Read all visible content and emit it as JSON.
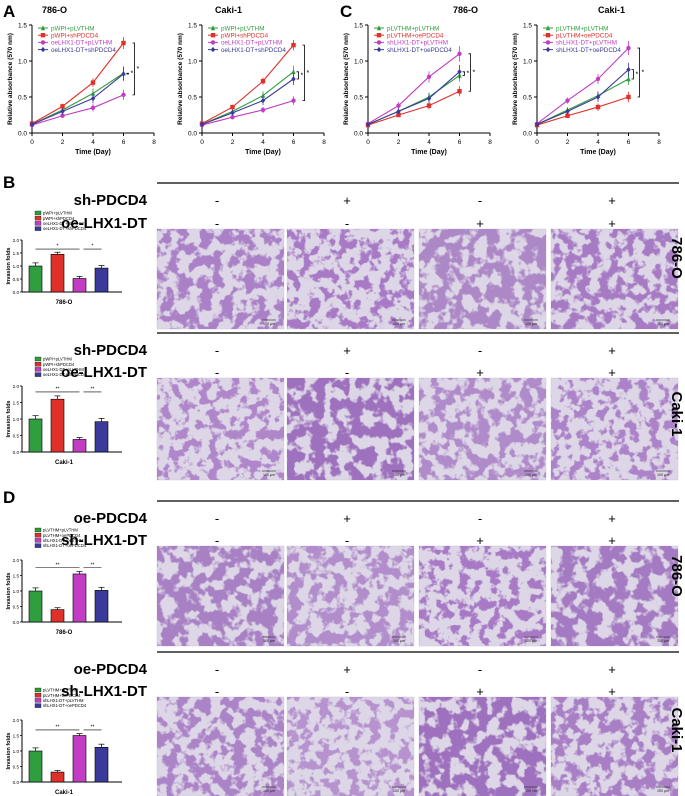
{
  "panels": {
    "A": "A",
    "B": "B",
    "C": "C",
    "D": "D"
  },
  "line_common": {
    "ylabel": "Relative absorbance (570 nm)",
    "xlabel": "Time (Day)",
    "xticks": [
      "0",
      "2",
      "4",
      "6",
      "8"
    ],
    "yticks": [
      "0.0",
      "0.5",
      "1.0",
      "1.5"
    ]
  },
  "bar_common": {
    "ylabel": "Invasion folds",
    "yticks": [
      "0.0",
      "0.5",
      "1.0",
      "1.5",
      "2.0"
    ]
  },
  "line_charts": {
    "a1": {
      "title": "786-O",
      "legend": [
        "pWPI+pLVTHM",
        "pWPI+shPDCD4",
        "oeLHX1-DT+pLVTHM",
        "oeLHX1-DT+shPDCD4"
      ]
    },
    "a2": {
      "title": "Caki-1",
      "legend": [
        "pWPI+pLVTHM",
        "pWPI+shPDCD4",
        "oeLHX1-DT+pLVTHM",
        "oeLHX1-DT+shPDCD4"
      ]
    },
    "c1": {
      "title": "786-O",
      "legend": [
        "pLVTHM+pLVTHM",
        "pLVTHM+oePDCD4",
        "shLHX1-DT+pLVTHM",
        "shLHX1-DT+oePDCD4"
      ]
    },
    "c2": {
      "title": "Caki-1",
      "legend": [
        "pLVTHM+pLVTHM",
        "pLVTHM+oePDCD4",
        "shLHX1-DT+pLVTHM",
        "shLHX1-DT+oePDCD4"
      ]
    }
  },
  "bar_charts": {
    "b1": {
      "label": "786-O",
      "legend": [
        "pWPI+pLVTHM",
        "pWPI+shPDCD4",
        "oeLHX1-DT+pLVTHM",
        "oeLHX1-DT+shPDCD4"
      ],
      "sig": [
        "*",
        "*"
      ]
    },
    "b2": {
      "label": "Caki-1",
      "legend": [
        "pWPI+pLVTHM",
        "pWPI+shPDCD4",
        "oeLHX1-DT+pLVTHM",
        "oeLHX1-DT+shPDCD4"
      ],
      "sig": [
        "**",
        "**"
      ]
    },
    "d1": {
      "label": "786-O",
      "legend": [
        "pLVTHM+pLVTHM",
        "pLVTHM+oePDCD4",
        "shLHX1-DT+pLVTHM",
        "shLHX1-DT+oePDCD4"
      ],
      "sig": [
        "**",
        "**"
      ]
    },
    "d2": {
      "label": "Caki-1",
      "legend": [
        "pLVTHM+pLVTHM",
        "pLVTHM+oePDCD4",
        "shLHX1-DT+pLVTHM",
        "shLHX1-DT+oePDCD4"
      ],
      "sig": [
        "**",
        "**"
      ]
    }
  },
  "treatment_tables": {
    "b1": {
      "row1": "sh-PDCD4",
      "row2": "oe-LHX1-DT",
      "r1": [
        "-",
        "+",
        "-",
        "+"
      ],
      "r2": [
        "-",
        "-",
        "+",
        "+"
      ]
    },
    "b2": {
      "row1": "sh-PDCD4",
      "row2": "oe-LHX1-DT",
      "r1": [
        "-",
        "+",
        "-",
        "+"
      ],
      "r2": [
        "-",
        "-",
        "+",
        "+"
      ]
    },
    "d1": {
      "row1": "oe-PDCD4",
      "row2": "sh-LHX1-DT",
      "r1": [
        "-",
        "+",
        "-",
        "+"
      ],
      "r2": [
        "-",
        "-",
        "+",
        "+"
      ]
    },
    "d2": {
      "row1": "oe-PDCD4",
      "row2": "sh-LHX1-DT",
      "r1": [
        "-",
        "+",
        "-",
        "+"
      ],
      "r2": [
        "-",
        "-",
        "+",
        "+"
      ]
    }
  },
  "cell_line_labels": {
    "b1": "786-O",
    "b2": "Caki-1",
    "d1": "786-O",
    "d2": "Caki-1"
  },
  "sig_star": "*",
  "scale_bar_text": "100 μm",
  "colors": {
    "s1": "#2e9e3e",
    "s2": "#e0302a",
    "s3": "#c23cc4",
    "s4": "#3a3a9a",
    "stain_dark": "#5a2a86",
    "stain_bg": "#ddd8e6"
  },
  "chart_data": [
    {
      "type": "line",
      "id": "A-786-O",
      "title": "786-O",
      "xlabel": "Time (Day)",
      "ylabel": "Relative absorbance (570 nm)",
      "xlim": [
        0,
        8
      ],
      "ylim": [
        0,
        1.5
      ],
      "x": [
        0,
        2,
        4,
        6
      ],
      "series": [
        {
          "name": "pWPI+pLVTHM",
          "values": [
            0.12,
            0.32,
            0.55,
            0.83
          ],
          "err": 0.08
        },
        {
          "name": "pWPI+shPDCD4",
          "values": [
            0.13,
            0.37,
            0.7,
            1.25
          ],
          "err": 0.07
        },
        {
          "name": "oeLHX1-DT+pLVTHM",
          "values": [
            0.11,
            0.24,
            0.35,
            0.53
          ],
          "err": 0.06
        },
        {
          "name": "oeLHX1-DT+shPDCD4",
          "values": [
            0.12,
            0.3,
            0.48,
            0.82
          ],
          "err": 0.08
        }
      ]
    },
    {
      "type": "line",
      "id": "A-Caki-1",
      "title": "Caki-1",
      "xlabel": "Time (Day)",
      "ylabel": "Relative absorbance (570 nm)",
      "xlim": [
        0,
        8
      ],
      "ylim": [
        0,
        1.5
      ],
      "x": [
        0,
        2,
        4,
        6
      ],
      "series": [
        {
          "name": "pWPI+pLVTHM",
          "values": [
            0.12,
            0.3,
            0.52,
            0.85
          ],
          "err": 0.07
        },
        {
          "name": "pWPI+shPDCD4",
          "values": [
            0.13,
            0.36,
            0.72,
            1.22
          ],
          "err": 0.06
        },
        {
          "name": "oeLHX1-DT+pLVTHM",
          "values": [
            0.11,
            0.22,
            0.32,
            0.45
          ],
          "err": 0.05
        },
        {
          "name": "oeLHX1-DT+shPDCD4",
          "values": [
            0.12,
            0.28,
            0.45,
            0.75
          ],
          "err": 0.07
        }
      ]
    },
    {
      "type": "line",
      "id": "C-786-O",
      "title": "786-O",
      "xlabel": "Time (Day)",
      "ylabel": "Relative absorbance (570 nm)",
      "xlim": [
        0,
        8
      ],
      "ylim": [
        0,
        1.5
      ],
      "x": [
        0,
        2,
        4,
        6
      ],
      "series": [
        {
          "name": "pLVTHM+pLVTHM",
          "values": [
            0.12,
            0.3,
            0.5,
            0.8
          ],
          "err": 0.07
        },
        {
          "name": "pLVTHM+oePDCD4",
          "values": [
            0.11,
            0.25,
            0.38,
            0.58
          ],
          "err": 0.06
        },
        {
          "name": "shLHX1-DT+pLVTHM",
          "values": [
            0.13,
            0.38,
            0.78,
            1.1
          ],
          "err": 0.09
        },
        {
          "name": "shLHX1-DT+oePDCD4",
          "values": [
            0.12,
            0.3,
            0.48,
            0.85
          ],
          "err": 0.08
        }
      ]
    },
    {
      "type": "line",
      "id": "C-Caki-1",
      "title": "Caki-1",
      "xlabel": "Time (Day)",
      "ylabel": "Relative absorbance (570 nm)",
      "xlim": [
        0,
        8
      ],
      "ylim": [
        0,
        1.5
      ],
      "x": [
        0,
        2,
        4,
        6
      ],
      "series": [
        {
          "name": "pLVTHM+pLVTHM",
          "values": [
            0.12,
            0.32,
            0.52,
            0.75
          ],
          "err": 0.07
        },
        {
          "name": "pLVTHM+oePDCD4",
          "values": [
            0.11,
            0.24,
            0.36,
            0.5
          ],
          "err": 0.06
        },
        {
          "name": "shLHX1-DT+pLVTHM",
          "values": [
            0.13,
            0.45,
            0.75,
            1.18
          ],
          "err": 0.08
        },
        {
          "name": "shLHX1-DT+oePDCD4",
          "values": [
            0.12,
            0.3,
            0.5,
            0.88
          ],
          "err": 0.08
        }
      ]
    },
    {
      "type": "bar",
      "id": "B-786-O",
      "label": "786-O",
      "ylabel": "Invasion folds",
      "ylim": [
        0,
        2
      ],
      "categories": [
        "pWPI+pLVTHM",
        "pWPI+shPDCD4",
        "oeLHX1-DT+pLVTHM",
        "oeLHX1-DT+shPDCD4"
      ],
      "values": [
        1.0,
        1.45,
        0.52,
        0.92
      ],
      "err": [
        0.12,
        0.08,
        0.08,
        0.1
      ]
    },
    {
      "type": "bar",
      "id": "B-Caki-1",
      "label": "Caki-1",
      "ylabel": "Invasion folds",
      "ylim": [
        0,
        2
      ],
      "categories": [
        "pWPI+pLVTHM",
        "pWPI+shPDCD4",
        "oeLHX1-DT+pLVTHM",
        "oeLHX1-DT+shPDCD4"
      ],
      "values": [
        1.0,
        1.6,
        0.38,
        0.92
      ],
      "err": [
        0.1,
        0.1,
        0.06,
        0.1
      ]
    },
    {
      "type": "bar",
      "id": "D-786-O",
      "label": "786-O",
      "ylabel": "Invasion folds",
      "ylim": [
        0,
        2
      ],
      "categories": [
        "pLVTHM+pLVTHM",
        "pLVTHM+oePDCD4",
        "shLHX1-DT+pLVTHM",
        "shLHX1-DT+oePDCD4"
      ],
      "values": [
        1.0,
        0.4,
        1.55,
        1.02
      ],
      "err": [
        0.1,
        0.06,
        0.08,
        0.1
      ]
    },
    {
      "type": "bar",
      "id": "D-Caki-1",
      "label": "Caki-1",
      "ylabel": "Invasion folds",
      "ylim": [
        0,
        2
      ],
      "categories": [
        "pLVTHM+pLVTHM",
        "pLVTHM+oePDCD4",
        "shLHX1-DT+pLVTHM",
        "shLHX1-DT+oePDCD4"
      ],
      "values": [
        1.0,
        0.32,
        1.5,
        1.12
      ],
      "err": [
        0.1,
        0.05,
        0.06,
        0.1
      ]
    }
  ]
}
